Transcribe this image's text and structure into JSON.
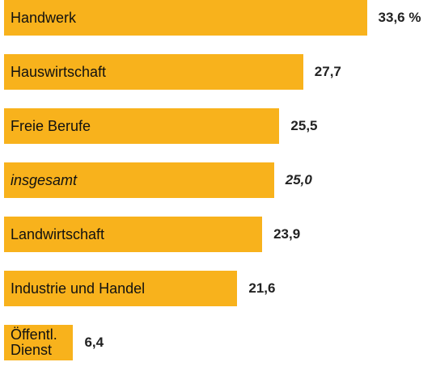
{
  "chart_data": {
    "type": "bar",
    "orientation": "horizontal",
    "categories": [
      "Handwerk",
      "Hauswirtschaft",
      "Freie Berufe",
      "insgesamt",
      "Landwirtschaft",
      "Industrie und Handel",
      "Öffentl. Dienst"
    ],
    "values": [
      33.6,
      27.7,
      25.5,
      25.0,
      23.9,
      21.6,
      6.4
    ],
    "value_labels": [
      "33,6 %",
      "27,7",
      "25,5",
      "25,0",
      "23,9",
      "21,6",
      "6,4"
    ],
    "color": "#f8b21c",
    "italic_index": 3,
    "xlim": [
      0,
      40
    ]
  }
}
